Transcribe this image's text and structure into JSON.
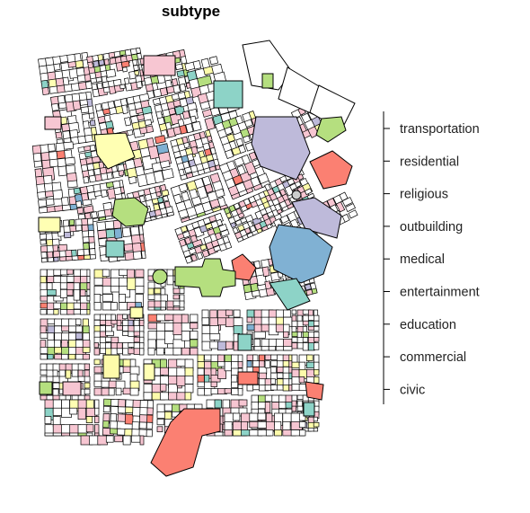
{
  "title": "subtype",
  "legend": {
    "title": "",
    "items": [
      {
        "label": "transportation",
        "color": "#ffffff"
      },
      {
        "label": "residential",
        "color": "#f7c6d2"
      },
      {
        "label": "religious",
        "color": "#b5df7f"
      },
      {
        "label": "outbuilding",
        "color": "#ffffb3"
      },
      {
        "label": "medical",
        "color": "#80b1d3"
      },
      {
        "label": "entertainment",
        "color": "#8dd3c7"
      },
      {
        "label": "education",
        "color": "#fdfbaa"
      },
      {
        "label": "commercial",
        "color": "#bebada"
      },
      {
        "label": "civic",
        "color": "#fb8072"
      }
    ]
  },
  "colors": {
    "outline": "#000000",
    "background": "#ffffff",
    "unclassified": "#ffffff"
  }
}
